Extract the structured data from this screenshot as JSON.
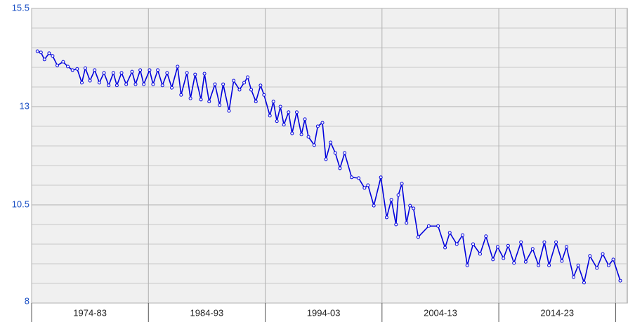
{
  "chart_data": {
    "type": "line",
    "x_labels": [
      "1974-83",
      "1984-93",
      "1994-03",
      "2004-13",
      "2014-23"
    ],
    "xlim": [
      1974,
      2025
    ],
    "xticks": [
      1974,
      1984,
      1994,
      2004,
      2014,
      2024
    ],
    "ylim": [
      8,
      15.5
    ],
    "yticks": [
      8,
      10.5,
      13,
      15.5
    ],
    "yminor": [
      8.5,
      9,
      9.5,
      10,
      11,
      11.5,
      12,
      12.5,
      13.5,
      14,
      14.5,
      15
    ],
    "grid": true,
    "series": [
      {
        "color": "#0000dd",
        "x": [
          1974.5,
          1974.8,
          1975.1,
          1975.5,
          1975.8,
          1976.2,
          1976.7,
          1977.1,
          1977.5,
          1977.9,
          1978.3,
          1978.6,
          1979.0,
          1979.4,
          1979.8,
          1980.2,
          1980.6,
          1981.0,
          1981.3,
          1981.7,
          1982.1,
          1982.6,
          1982.9,
          1983.3,
          1983.6,
          1984.1,
          1984.4,
          1984.8,
          1985.2,
          1985.6,
          1986.0,
          1986.5,
          1986.8,
          1987.3,
          1987.6,
          1988.0,
          1988.5,
          1988.8,
          1989.2,
          1989.7,
          1990.1,
          1990.4,
          1990.9,
          1991.3,
          1991.8,
          1992.2,
          1992.5,
          1992.8,
          1993.2,
          1993.6,
          1993.9,
          1994.4,
          1994.7,
          1995.0,
          1995.3,
          1995.6,
          1996.0,
          1996.3,
          1996.7,
          1997.1,
          1997.4,
          1997.7,
          1998.2,
          1998.5,
          1998.9,
          1999.2,
          1999.6,
          2000.0,
          2000.4,
          2000.8,
          2001.4,
          2002.0,
          2002.5,
          2002.8,
          2003.3,
          2003.9,
          2004.4,
          2004.8,
          2005.2,
          2005.4,
          2005.7,
          2006.1,
          2006.4,
          2006.7,
          2007.1,
          2008.0,
          2008.8,
          2009.4,
          2009.8,
          2010.4,
          2010.9,
          2011.3,
          2011.8,
          2012.4,
          2012.9,
          2013.5,
          2013.9,
          2014.4,
          2014.8,
          2015.3,
          2015.9,
          2016.3,
          2016.9,
          2017.4,
          2017.9,
          2018.3,
          2018.9,
          2019.4,
          2019.8,
          2020.4,
          2020.8,
          2021.3,
          2021.8,
          2022.4,
          2022.9,
          2023.4,
          2023.8,
          2024.4
        ],
        "values": [
          14.41,
          14.38,
          14.2,
          14.36,
          14.29,
          14.05,
          14.14,
          14.02,
          13.93,
          13.96,
          13.61,
          13.98,
          13.66,
          13.93,
          13.61,
          13.86,
          13.54,
          13.86,
          13.54,
          13.86,
          13.57,
          13.89,
          13.57,
          13.93,
          13.57,
          13.93,
          13.57,
          13.93,
          13.54,
          13.86,
          13.48,
          14.02,
          13.3,
          13.86,
          13.21,
          13.82,
          13.18,
          13.84,
          13.13,
          13.57,
          13.04,
          13.57,
          12.89,
          13.66,
          13.43,
          13.61,
          13.75,
          13.43,
          13.13,
          13.54,
          13.3,
          12.77,
          13.13,
          12.63,
          13.0,
          12.54,
          12.86,
          12.32,
          12.86,
          12.29,
          12.68,
          12.23,
          12.02,
          12.5,
          12.59,
          11.66,
          12.09,
          11.82,
          11.43,
          11.82,
          11.2,
          11.18,
          10.93,
          11.0,
          10.48,
          11.2,
          10.18,
          10.63,
          10.0,
          10.75,
          11.04,
          10.04,
          10.48,
          10.41,
          9.68,
          9.96,
          9.96,
          9.41,
          9.79,
          9.5,
          9.73,
          8.96,
          9.5,
          9.25,
          9.7,
          9.11,
          9.43,
          9.14,
          9.46,
          9.02,
          9.55,
          9.05,
          9.38,
          8.96,
          9.55,
          8.96,
          9.55,
          9.07,
          9.43,
          8.66,
          8.96,
          8.52,
          9.2,
          8.89,
          9.25,
          8.96,
          9.11,
          8.57
        ]
      }
    ]
  }
}
